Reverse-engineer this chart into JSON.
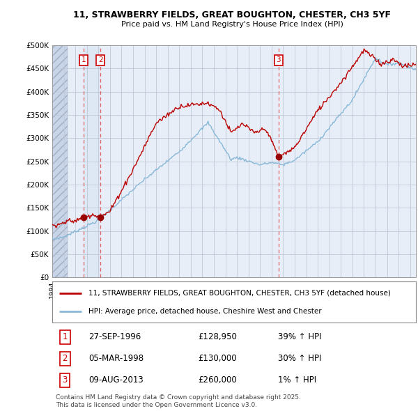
{
  "title_line1": "11, STRAWBERRY FIELDS, GREAT BOUGHTON, CHESTER, CH3 5YF",
  "title_line2": "Price paid vs. HM Land Registry's House Price Index (HPI)",
  "property_label": "11, STRAWBERRY FIELDS, GREAT BOUGHTON, CHESTER, CH3 5YF (detached house)",
  "hpi_label": "HPI: Average price, detached house, Cheshire West and Chester",
  "transactions": [
    {
      "num": 1,
      "date": "27-SEP-1996",
      "price": 128950,
      "hpi_pct": "39% ↑ HPI",
      "year": 1996.74
    },
    {
      "num": 2,
      "date": "05-MAR-1998",
      "price": 130000,
      "hpi_pct": "30% ↑ HPI",
      "year": 1998.17
    },
    {
      "num": 3,
      "date": "09-AUG-2013",
      "price": 260000,
      "hpi_pct": "1% ↑ HPI",
      "year": 2013.6
    }
  ],
  "footer": "Contains HM Land Registry data © Crown copyright and database right 2025.\nThis data is licensed under the Open Government Licence v3.0.",
  "ylim": [
    0,
    500000
  ],
  "yticks": [
    0,
    50000,
    100000,
    150000,
    200000,
    250000,
    300000,
    350000,
    400000,
    450000,
    500000
  ],
  "bg_color": "#e8eef8",
  "hatch_color": "#c8d4e8",
  "grid_color": "#c0c8d8",
  "property_line_color": "#bb0000",
  "hpi_line_color": "#88b8d8",
  "vline_color": "#dd6666",
  "marker_color": "#990000",
  "box_color": "#cc0000",
  "xstart": 1994.0,
  "xend": 2025.5
}
